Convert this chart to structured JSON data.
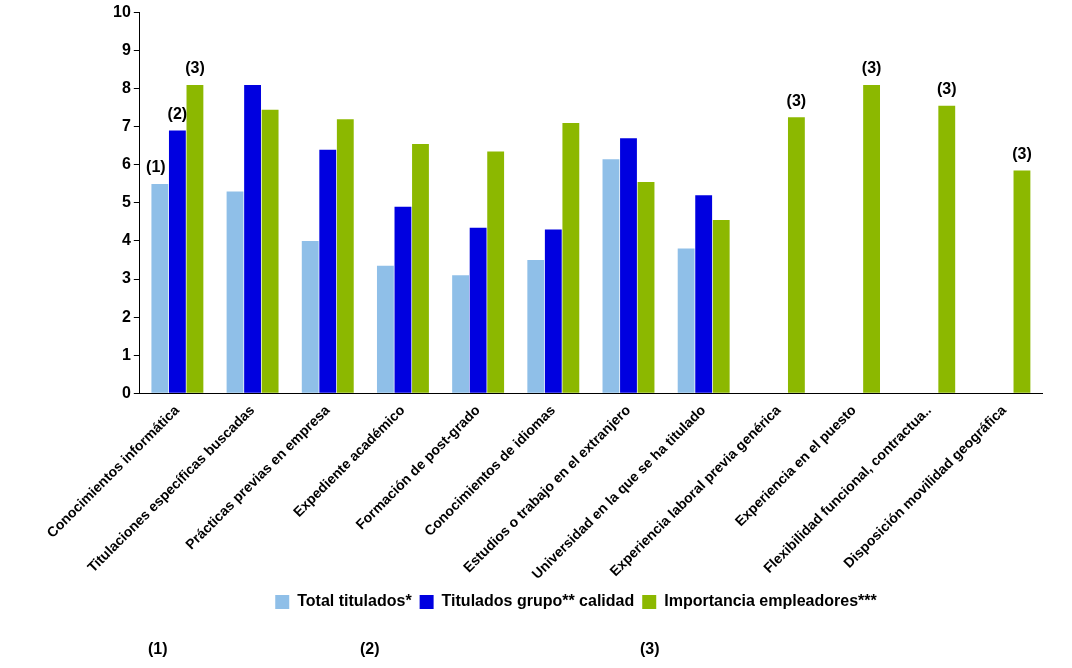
{
  "chart_data": {
    "type": "bar",
    "categories": [
      "Conocimientos informática",
      "Titulaciones específicas buscadas",
      "Prácticas previas en empresa",
      "Expediente académico",
      "Formación de post-grado",
      "Conocimientos de idiomas",
      "Estudios o trabajo en el extranjero",
      "Universidad en la que se ha titulado",
      "Experiencia laboral previa genérica",
      "Experiencia en el puesto",
      "Flexibilidad funcional, contractua..",
      "Disposición movilidad geográfica"
    ],
    "series": [
      {
        "name": "Total titulados*",
        "color": "#8fbfe8",
        "values": [
          5.5,
          5.3,
          4.0,
          3.35,
          3.1,
          3.5,
          6.15,
          3.8,
          null,
          null,
          null,
          null
        ]
      },
      {
        "name": "Titulados grupo** calidad",
        "color": "#0000e0",
        "values": [
          6.9,
          8.1,
          6.4,
          4.9,
          4.35,
          4.3,
          6.7,
          5.2,
          null,
          null,
          null,
          null
        ]
      },
      {
        "name": "Importancia empleadores***",
        "color": "#8cb800",
        "values": [
          8.1,
          7.45,
          7.2,
          6.55,
          6.35,
          7.1,
          5.55,
          4.55,
          7.25,
          8.1,
          7.55,
          5.85
        ]
      }
    ],
    "ylim": [
      0,
      10
    ],
    "yticks": [
      0,
      1,
      2,
      3,
      4,
      5,
      6,
      7,
      8,
      9,
      10
    ],
    "grid": false,
    "legend": "bottom",
    "annotations": [
      "(1)",
      "(2)",
      "(3)",
      "(3)",
      "(3)",
      "(3)",
      "(3)",
      "(1)",
      "(2)",
      "(3)"
    ]
  }
}
